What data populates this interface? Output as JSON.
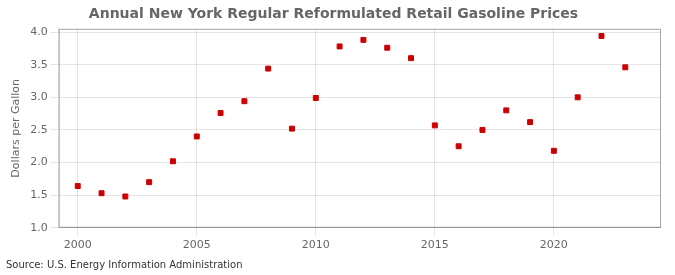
{
  "chart_data": {
    "type": "scatter",
    "title": "Annual New York Regular Reformulated Retail Gasoline Prices",
    "y_label": "Dollars per Gallon",
    "annotation": "Source: U.S. Energy Information Administration",
    "x": [
      2000,
      2001,
      2002,
      2003,
      2004,
      2005,
      2006,
      2007,
      2008,
      2009,
      2010,
      2011,
      2012,
      2013,
      2014,
      2015,
      2016,
      2017,
      2018,
      2019,
      2020,
      2021,
      2022,
      2023
    ],
    "values": [
      1.64,
      1.53,
      1.48,
      1.7,
      2.02,
      2.4,
      2.76,
      2.94,
      3.44,
      2.52,
      2.99,
      3.78,
      3.88,
      3.76,
      3.6,
      2.57,
      2.25,
      2.5,
      2.8,
      2.62,
      2.18,
      3.0,
      3.94,
      3.46
    ],
    "color": "#cc0000",
    "marker": "square",
    "xlim": [
      1999.2,
      2024.5
    ],
    "ylim": [
      1.0,
      4.05
    ],
    "xticks": [
      2000,
      2005,
      2010,
      2015,
      2020
    ],
    "yticks": [
      {
        "value": 1.0,
        "label": "1.0"
      },
      1.5,
      {
        "value": 2.0,
        "label": "2.0"
      },
      2.5,
      {
        "value": 3.0,
        "label": "3.0"
      },
      3.5,
      {
        "value": 4.0,
        "label": "4.0"
      }
    ],
    "grid": true
  }
}
